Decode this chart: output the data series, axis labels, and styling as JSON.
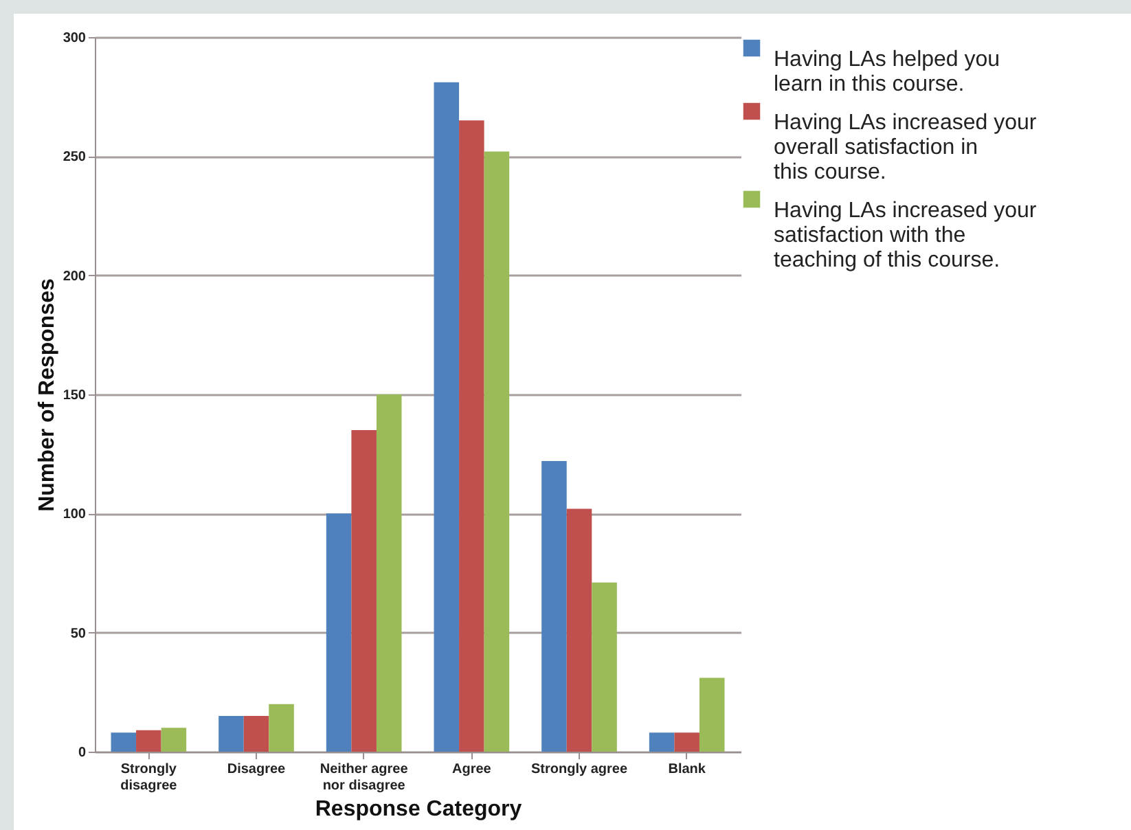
{
  "chart_data": {
    "type": "bar",
    "xlabel": "Response Category",
    "ylabel": "Number of Responses",
    "categories": [
      "Strongly disagree",
      "Disagree",
      "Neither agree nor disagree",
      "Agree",
      "Strongly agree",
      "Blank"
    ],
    "series": [
      {
        "name": "Having LAs helped you learn in this course.",
        "color": "#4f81bd",
        "values": [
          8,
          15,
          100,
          281,
          122,
          8
        ]
      },
      {
        "name": "Having LAs increased your overall satisfaction in this course.",
        "color": "#c0504d",
        "values": [
          9,
          15,
          135,
          265,
          102,
          8
        ]
      },
      {
        "name": "Having LAs increased your satisfaction with the teaching of this course.",
        "color": "#9bbb59",
        "values": [
          10,
          20,
          150,
          252,
          71,
          31
        ]
      }
    ],
    "ylim": [
      0,
      300
    ],
    "yticks": [
      0,
      50,
      100,
      150,
      200,
      250,
      300
    ],
    "grid": "y",
    "legend": "right"
  }
}
